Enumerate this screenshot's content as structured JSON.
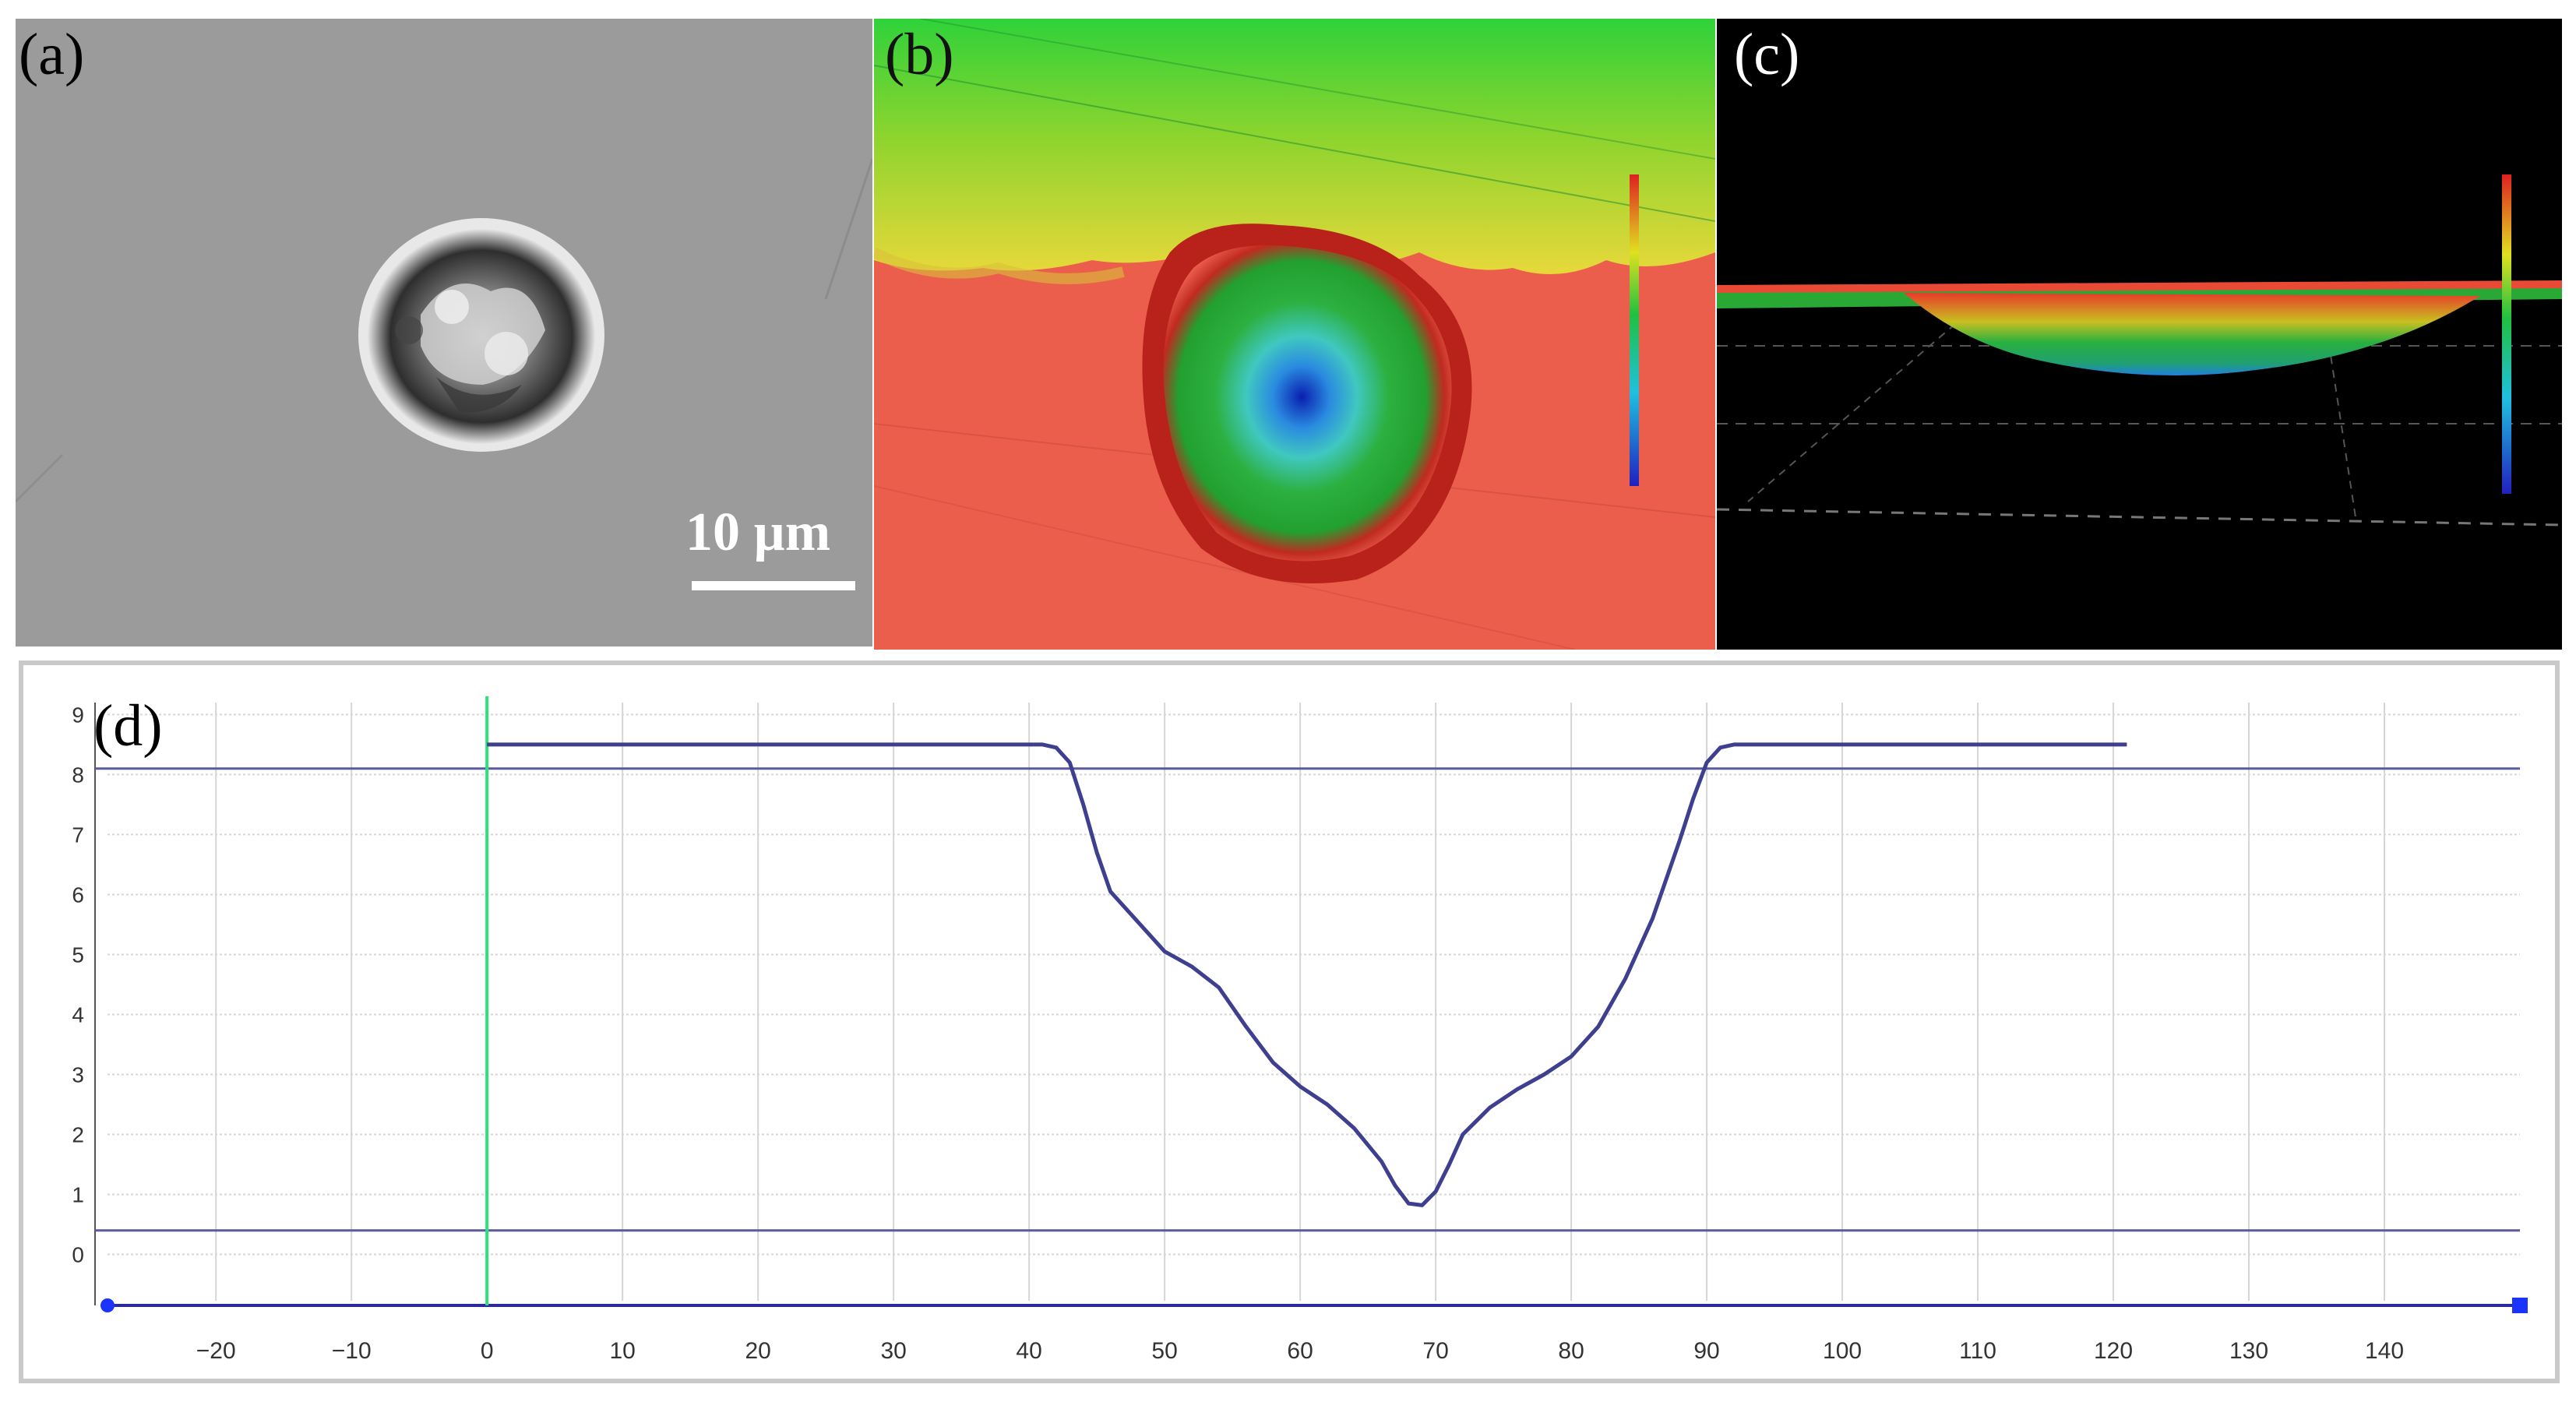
{
  "figure": {
    "panels": [
      {
        "label": "(a)",
        "kind": "SEM micrograph of a single pit/particle",
        "scale_bar_text": "10 µm"
      },
      {
        "label": "(b)",
        "kind": "2D height color map"
      },
      {
        "label": "(c)",
        "kind": "3D height color view"
      },
      {
        "label": "(d)",
        "kind": "depth profile"
      }
    ]
  },
  "chart_data": {
    "type": "line",
    "title": "",
    "xlabel": "",
    "ylabel": "",
    "x_ticks": [
      "−20",
      "−10",
      "0",
      "10",
      "20",
      "30",
      "40",
      "50",
      "60",
      "70",
      "80",
      "90",
      "100",
      "110",
      "120",
      "130",
      "140"
    ],
    "y_ticks": [
      "0",
      "1",
      "2",
      "3",
      "4",
      "5",
      "6",
      "7",
      "8",
      "9"
    ],
    "xlim": [
      -28,
      150
    ],
    "ylim": [
      -0.85,
      9.2
    ],
    "reference_lines": {
      "vertical_x": 0,
      "horizontal_y": [
        8.1,
        0.4
      ]
    },
    "series": [
      {
        "name": "profile",
        "x": [
          0,
          41,
          42,
          43,
          44,
          45,
          46,
          48,
          50,
          52,
          54,
          56,
          58,
          60,
          62,
          64,
          66,
          67,
          68,
          69,
          70,
          71,
          72,
          74,
          76,
          78,
          80,
          82,
          84,
          86,
          88,
          89,
          90,
          91,
          92,
          121
        ],
        "y": [
          8.5,
          8.5,
          8.45,
          8.2,
          7.5,
          6.7,
          6.05,
          5.55,
          5.05,
          4.8,
          4.45,
          3.8,
          3.2,
          2.8,
          2.5,
          2.1,
          1.55,
          1.15,
          0.85,
          0.82,
          1.05,
          1.5,
          2.0,
          2.45,
          2.75,
          3.0,
          3.3,
          3.8,
          4.6,
          5.6,
          6.9,
          7.6,
          8.2,
          8.45,
          8.5,
          8.5
        ]
      }
    ]
  },
  "colors": {
    "profile_line": "#3f3f8f",
    "reference_line": "#5a5aa0",
    "marker_line": "#2ee07a",
    "axis_marker": "#1a33ff"
  }
}
